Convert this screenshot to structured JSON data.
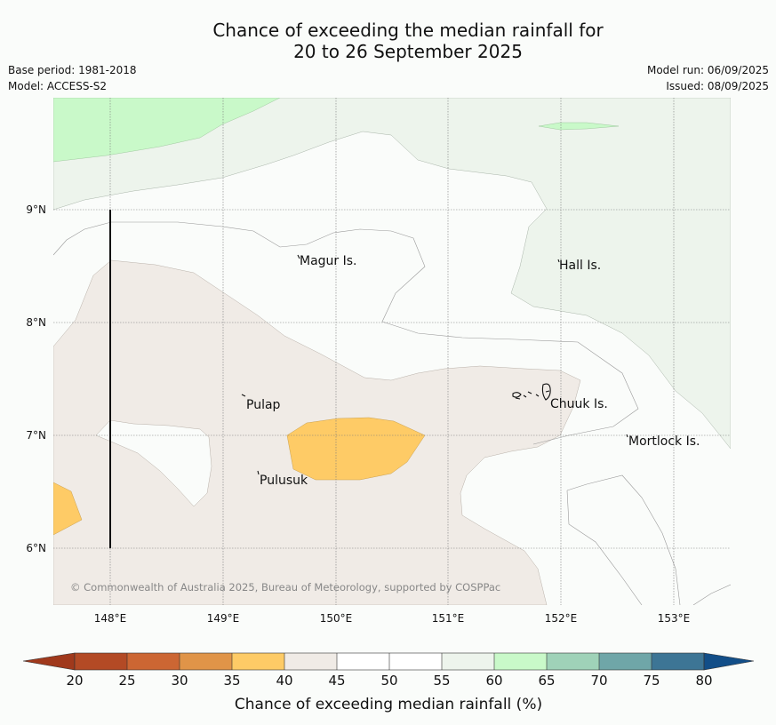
{
  "title": {
    "line1": "Chance of exceeding the median rainfall for",
    "line2": "20 to 26 September 2025"
  },
  "meta": {
    "base_period": "Base period: 1981-2018",
    "model": "Model: ACCESS-S2",
    "model_run": "Model run: 06/09/2025",
    "issued": "Issued: 08/09/2025"
  },
  "map": {
    "lon_ticks": [
      "148°E",
      "149°E",
      "150°E",
      "151°E",
      "152°E",
      "153°E"
    ],
    "lat_ticks": [
      "9°N",
      "8°N",
      "7°N",
      "6°N"
    ],
    "places": [
      "Magur Is.",
      "Hall Is.",
      "Pulap",
      "Chuuk Is.",
      "Mortlock Is.",
      "Pulusuk"
    ],
    "copyright": "© Commonwealth of Australia 2025, Bureau of Meteorology, supported by COSPPac"
  },
  "colorbar": {
    "ticks": [
      "20",
      "25",
      "30",
      "35",
      "40",
      "45",
      "50",
      "55",
      "60",
      "65",
      "70",
      "75",
      "80"
    ],
    "label": "Chance of exceeding median rainfall (%)",
    "colors": [
      "#a0391c",
      "#b34a25",
      "#cc6633",
      "#e09448",
      "#fecb66",
      "#f0ebe6",
      "#ffffff",
      "#ffffff",
      "#edf4ec",
      "#c9f9c9",
      "#9fd2b8",
      "#6fa6a8",
      "#3d7595",
      "#124e88"
    ]
  }
}
